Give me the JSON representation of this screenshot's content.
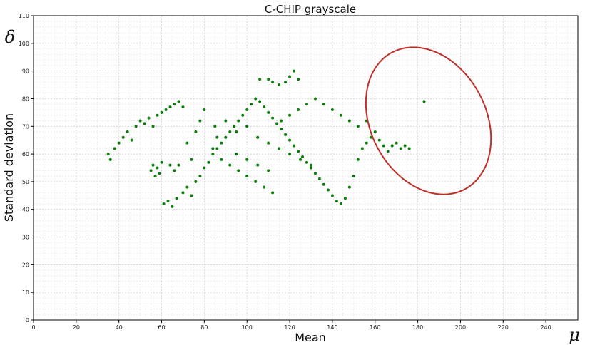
{
  "chart_data": {
    "type": "scatter",
    "title": "C-CHIP grayscale",
    "xlabel": "Mean",
    "ylabel": "Standard deviation",
    "x_symbol": "μ",
    "y_symbol": "δ",
    "xlim": [
      0,
      255
    ],
    "ylim": [
      0,
      110
    ],
    "xticks": [
      0,
      20,
      40,
      60,
      80,
      100,
      120,
      140,
      160,
      180,
      200,
      220,
      240
    ],
    "yticks": [
      0,
      10,
      20,
      30,
      40,
      50,
      60,
      70,
      80,
      90,
      100,
      110
    ],
    "grid": true,
    "point_color": "#0a7d0a",
    "series": [
      {
        "values": [
          [
            35,
            60
          ],
          [
            36,
            58
          ],
          [
            38,
            62
          ],
          [
            40,
            64
          ],
          [
            42,
            66
          ],
          [
            44,
            68
          ],
          [
            46,
            65
          ],
          [
            48,
            70
          ],
          [
            50,
            72
          ],
          [
            52,
            71
          ],
          [
            54,
            73
          ],
          [
            56,
            70
          ],
          [
            58,
            74
          ],
          [
            60,
            75
          ],
          [
            62,
            76
          ],
          [
            64,
            77
          ],
          [
            66,
            78
          ],
          [
            68,
            79
          ],
          [
            70,
            77
          ],
          [
            55,
            54
          ],
          [
            56,
            56
          ],
          [
            57,
            52
          ],
          [
            58,
            55
          ],
          [
            59,
            53
          ],
          [
            60,
            57
          ],
          [
            61,
            42
          ],
          [
            63,
            43
          ],
          [
            65,
            41
          ],
          [
            67,
            44
          ],
          [
            70,
            46
          ],
          [
            72,
            48
          ],
          [
            74,
            45
          ],
          [
            76,
            50
          ],
          [
            78,
            52
          ],
          [
            80,
            55
          ],
          [
            82,
            57
          ],
          [
            84,
            60
          ],
          [
            86,
            62
          ],
          [
            88,
            64
          ],
          [
            90,
            66
          ],
          [
            92,
            68
          ],
          [
            94,
            70
          ],
          [
            96,
            72
          ],
          [
            98,
            74
          ],
          [
            100,
            76
          ],
          [
            102,
            78
          ],
          [
            104,
            80
          ],
          [
            106,
            79
          ],
          [
            108,
            77
          ],
          [
            110,
            75
          ],
          [
            112,
            73
          ],
          [
            114,
            71
          ],
          [
            116,
            69
          ],
          [
            118,
            67
          ],
          [
            120,
            65
          ],
          [
            122,
            63
          ],
          [
            124,
            61
          ],
          [
            126,
            59
          ],
          [
            128,
            57
          ],
          [
            130,
            55
          ],
          [
            132,
            53
          ],
          [
            134,
            51
          ],
          [
            136,
            49
          ],
          [
            138,
            47
          ],
          [
            140,
            45
          ],
          [
            142,
            43
          ],
          [
            144,
            42
          ],
          [
            146,
            44
          ],
          [
            148,
            48
          ],
          [
            150,
            52
          ],
          [
            152,
            58
          ],
          [
            154,
            62
          ],
          [
            156,
            64
          ],
          [
            158,
            66
          ],
          [
            160,
            68
          ],
          [
            162,
            65
          ],
          [
            164,
            63
          ],
          [
            166,
            61
          ],
          [
            168,
            63
          ],
          [
            170,
            64
          ],
          [
            172,
            62
          ],
          [
            174,
            63
          ],
          [
            176,
            62
          ],
          [
            183,
            79
          ],
          [
            85,
            70
          ],
          [
            90,
            72
          ],
          [
            95,
            68
          ],
          [
            100,
            70
          ],
          [
            105,
            66
          ],
          [
            110,
            64
          ],
          [
            115,
            62
          ],
          [
            120,
            60
          ],
          [
            125,
            58
          ],
          [
            130,
            56
          ],
          [
            95,
            60
          ],
          [
            100,
            58
          ],
          [
            105,
            56
          ],
          [
            110,
            54
          ],
          [
            88,
            58
          ],
          [
            92,
            56
          ],
          [
            96,
            54
          ],
          [
            100,
            52
          ],
          [
            104,
            50
          ],
          [
            108,
            48
          ],
          [
            112,
            46
          ],
          [
            116,
            72
          ],
          [
            120,
            74
          ],
          [
            124,
            76
          ],
          [
            128,
            78
          ],
          [
            132,
            80
          ],
          [
            136,
            78
          ],
          [
            140,
            76
          ],
          [
            144,
            74
          ],
          [
            148,
            72
          ],
          [
            152,
            70
          ],
          [
            156,
            72
          ],
          [
            115,
            85
          ],
          [
            118,
            86
          ],
          [
            120,
            88
          ],
          [
            122,
            90
          ],
          [
            124,
            87
          ],
          [
            110,
            87
          ],
          [
            112,
            86
          ],
          [
            106,
            87
          ],
          [
            84,
            62
          ],
          [
            86,
            66
          ],
          [
            78,
            72
          ],
          [
            80,
            76
          ],
          [
            76,
            68
          ],
          [
            72,
            64
          ],
          [
            74,
            58
          ],
          [
            68,
            56
          ],
          [
            66,
            54
          ],
          [
            64,
            56
          ]
        ]
      }
    ],
    "annotation": {
      "shape": "ellipse",
      "center": [
        185,
        72
      ],
      "radii": [
        27,
        28
      ],
      "rotation_deg": -28,
      "color": "#c0302a"
    }
  }
}
